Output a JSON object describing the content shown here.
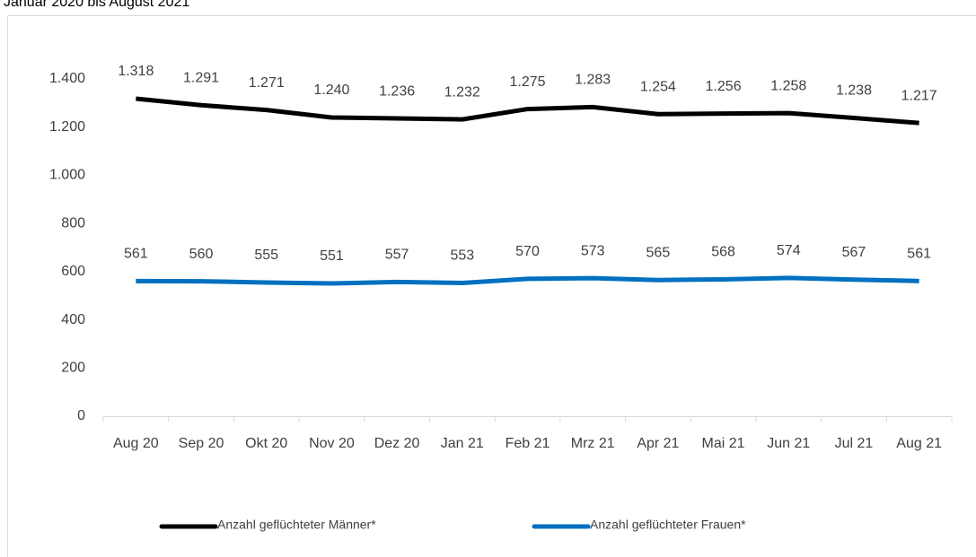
{
  "chart_data": {
    "type": "line",
    "title": "Januar 2020 bis August 2021",
    "categories": [
      "Aug 20",
      "Sep 20",
      "Okt 20",
      "Nov 20",
      "Dez 20",
      "Jan 21",
      "Feb 21",
      "Mrz 21",
      "Apr 21",
      "Mai 21",
      "Jun 21",
      "Jul 21",
      "Aug 21"
    ],
    "series": [
      {
        "name": "Anzahl geflüchteter Männer*",
        "color": "#000000",
        "values": [
          1318,
          1291,
          1271,
          1240,
          1236,
          1232,
          1275,
          1283,
          1254,
          1256,
          1258,
          1238,
          1217
        ],
        "value_labels": [
          "1.318",
          "1.291",
          "1.271",
          "1.240",
          "1.236",
          "1.232",
          "1.275",
          "1.283",
          "1.254",
          "1.256",
          "1.258",
          "1.238",
          "1.217"
        ]
      },
      {
        "name": "Anzahl geflüchteter Frauen*",
        "color": "#0070c0",
        "values": [
          561,
          560,
          555,
          551,
          557,
          553,
          570,
          573,
          565,
          568,
          574,
          567,
          561
        ]
      }
    ],
    "ylim": [
      0,
      1400
    ],
    "yticks": [
      0,
      200,
      400,
      600,
      800,
      {
        "value": 1000,
        "label": "1.000"
      },
      {
        "value": 1200,
        "label": "1.200"
      },
      {
        "value": 1400,
        "label": "1.400"
      }
    ],
    "grid": false,
    "legend": "bottom"
  }
}
